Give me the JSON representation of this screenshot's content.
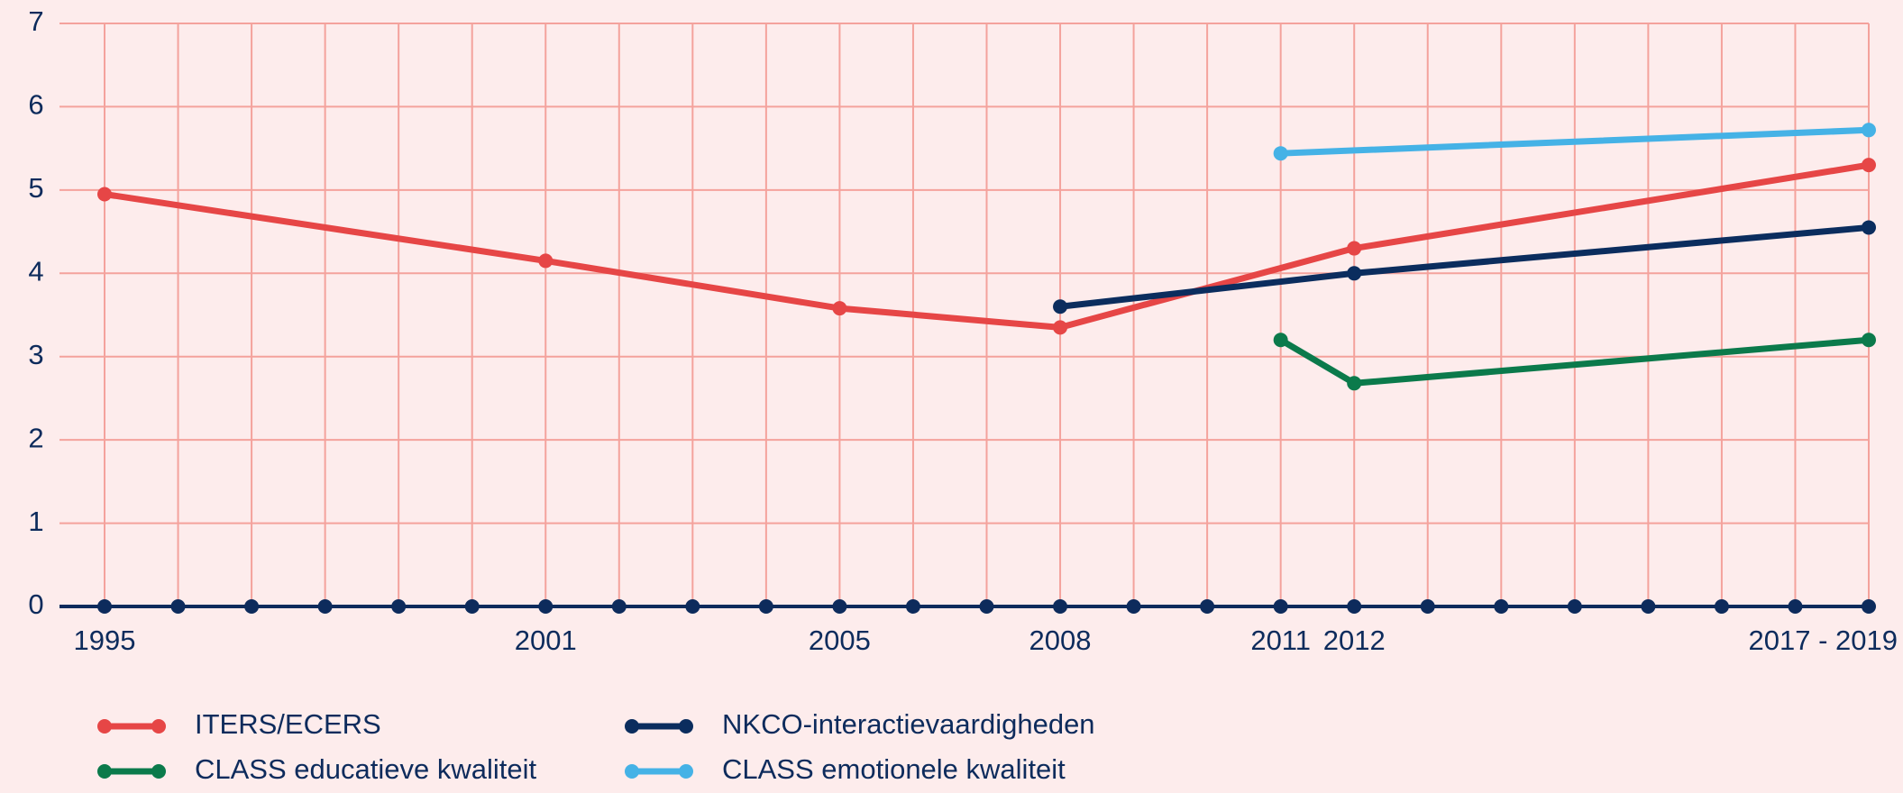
{
  "chart_data": {
    "type": "line",
    "categories": [
      "1995",
      null,
      null,
      null,
      null,
      null,
      "2001",
      null,
      null,
      null,
      "2005",
      null,
      null,
      "2008",
      null,
      null,
      "2011",
      "2012",
      null,
      null,
      null,
      null,
      null,
      null,
      "2017 - 2019"
    ],
    "ylim": [
      0,
      7
    ],
    "yticks": [
      0,
      1,
      2,
      3,
      4,
      5,
      6,
      7
    ],
    "grid": true,
    "series": [
      {
        "name": "ITERS/ECERS",
        "color": "#e64646",
        "values": [
          4.95,
          null,
          null,
          null,
          null,
          null,
          4.15,
          null,
          null,
          null,
          3.58,
          null,
          null,
          3.35,
          null,
          null,
          null,
          4.3,
          null,
          null,
          null,
          null,
          null,
          null,
          5.3
        ]
      },
      {
        "name": "CLASS educatieve kwaliteit",
        "color": "#0b7a4b",
        "values": [
          null,
          null,
          null,
          null,
          null,
          null,
          null,
          null,
          null,
          null,
          null,
          null,
          null,
          null,
          null,
          null,
          3.2,
          2.68,
          null,
          null,
          null,
          null,
          null,
          null,
          3.2
        ]
      },
      {
        "name": "NKCO-interactievaardigheden",
        "color": "#0b2d5e",
        "values": [
          null,
          null,
          null,
          null,
          null,
          null,
          null,
          null,
          null,
          null,
          null,
          null,
          null,
          3.6,
          null,
          null,
          null,
          4.0,
          null,
          null,
          null,
          null,
          null,
          null,
          4.55
        ]
      },
      {
        "name": "CLASS emotionele kwaliteit",
        "color": "#45b2e6",
        "values": [
          null,
          null,
          null,
          null,
          null,
          null,
          null,
          null,
          null,
          null,
          null,
          null,
          null,
          null,
          null,
          null,
          5.44,
          null,
          null,
          null,
          null,
          null,
          null,
          null,
          5.72
        ]
      }
    ]
  }
}
